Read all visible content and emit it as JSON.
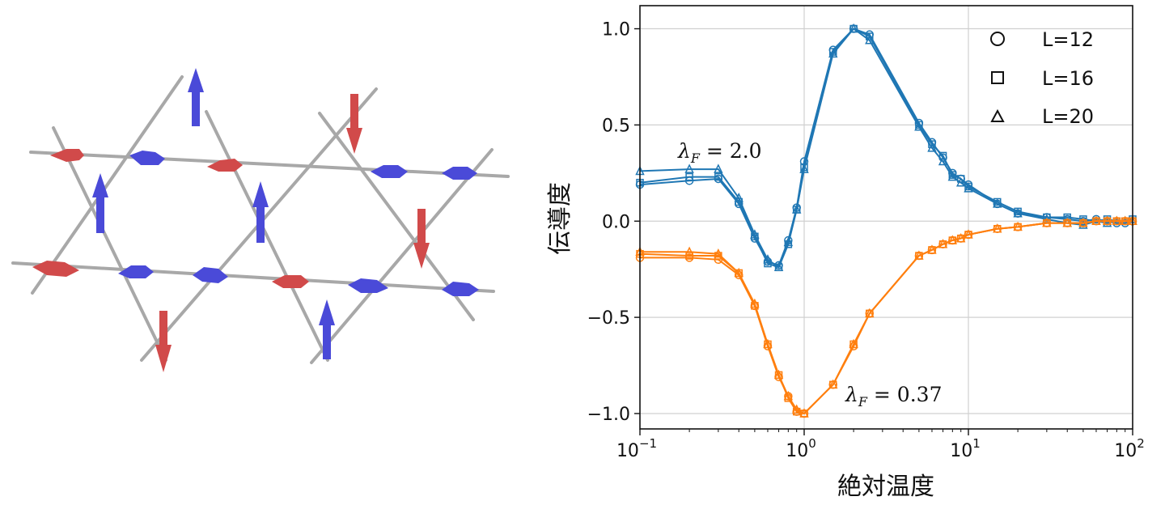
{
  "lattice": {
    "colors": {
      "up_arrow": "#4a4ad8",
      "down_arrow": "#d14a4a",
      "bond": "#a8a8a8"
    }
  },
  "chart_data": {
    "type": "line",
    "xlabel": "絶対温度",
    "ylabel": "伝導度",
    "xscale": "log",
    "xlim": [
      0.1,
      100
    ],
    "ylim": [
      -1.08,
      1.12
    ],
    "grid": true,
    "xticks": [
      0.1,
      1,
      10,
      100
    ],
    "xtick_labels": [
      {
        "base": "10",
        "exp": "−1"
      },
      {
        "base": "10",
        "exp": "0"
      },
      {
        "base": "10",
        "exp": "1"
      },
      {
        "base": "10",
        "exp": "2"
      }
    ],
    "yticks": [
      1.0,
      0.5,
      0.0,
      -0.5,
      -1.0
    ],
    "ytick_labels": [
      "1.0",
      "0.5",
      "0.0",
      "−0.5",
      "−1.0"
    ],
    "legend": {
      "position": "top-right",
      "entries": [
        {
          "marker": "circle",
          "label": "L=12"
        },
        {
          "marker": "square",
          "label": "L=16"
        },
        {
          "marker": "triangle",
          "label": "L=20"
        }
      ]
    },
    "annotations": [
      {
        "text": "λ_F = 2.0",
        "symbol": "λ",
        "sub": "F",
        "rest": " = 2.0",
        "x": 0.2,
        "y": 0.36
      },
      {
        "text": "λ_F = 0.37",
        "symbol": "λ",
        "sub": "F",
        "rest": " = 0.37",
        "x": 2.5,
        "y": -0.94
      }
    ],
    "series": [
      {
        "group": "λ_F = 2.0",
        "color": "#1f77b4",
        "marker": "circle",
        "points": [
          [
            0.1,
            0.19
          ],
          [
            0.2,
            0.21
          ],
          [
            0.3,
            0.22
          ],
          [
            0.4,
            0.09
          ],
          [
            0.5,
            -0.09
          ],
          [
            0.6,
            -0.21
          ],
          [
            0.7,
            -0.23
          ],
          [
            0.8,
            -0.1
          ],
          [
            0.9,
            0.07
          ],
          [
            1,
            0.31
          ],
          [
            1.5,
            0.89
          ],
          [
            2,
            1.0
          ],
          [
            2.5,
            0.97
          ],
          [
            5,
            0.51
          ],
          [
            6,
            0.41
          ],
          [
            7,
            0.33
          ],
          [
            8,
            0.25
          ],
          [
            9,
            0.22
          ],
          [
            10,
            0.19
          ],
          [
            15,
            0.09
          ],
          [
            20,
            0.04
          ],
          [
            30,
            0.02
          ],
          [
            40,
            0.01
          ],
          [
            50,
            0.0
          ],
          [
            60,
            0.01
          ],
          [
            70,
            0.0
          ],
          [
            80,
            -0.01
          ],
          [
            90,
            -0.01
          ],
          [
            100,
            0.0
          ]
        ]
      },
      {
        "group": "λ_F = 2.0",
        "color": "#1f77b4",
        "marker": "square",
        "points": [
          [
            0.1,
            0.2
          ],
          [
            0.2,
            0.23
          ],
          [
            0.3,
            0.23
          ],
          [
            0.4,
            0.1
          ],
          [
            0.5,
            -0.08
          ],
          [
            0.6,
            -0.22
          ],
          [
            0.7,
            -0.24
          ],
          [
            0.8,
            -0.12
          ],
          [
            0.9,
            0.06
          ],
          [
            1,
            0.28
          ],
          [
            1.5,
            0.88
          ],
          [
            2,
            1.0
          ],
          [
            2.5,
            0.96
          ],
          [
            5,
            0.5
          ],
          [
            6,
            0.4
          ],
          [
            7,
            0.34
          ],
          [
            8,
            0.24
          ],
          [
            9,
            0.22
          ],
          [
            10,
            0.18
          ],
          [
            15,
            0.1
          ],
          [
            20,
            0.05
          ],
          [
            30,
            0.02
          ],
          [
            40,
            0.02
          ],
          [
            50,
            0.01
          ],
          [
            60,
            0.0
          ],
          [
            70,
            0.01
          ],
          [
            80,
            0.0
          ],
          [
            90,
            0.0
          ],
          [
            100,
            0.01
          ]
        ]
      },
      {
        "group": "λ_F = 2.0",
        "color": "#1f77b4",
        "marker": "triangle",
        "points": [
          [
            0.1,
            0.26
          ],
          [
            0.2,
            0.27
          ],
          [
            0.3,
            0.27
          ],
          [
            0.4,
            0.12
          ],
          [
            0.5,
            -0.07
          ],
          [
            0.6,
            -0.2
          ],
          [
            0.7,
            -0.24
          ],
          [
            0.8,
            -0.11
          ],
          [
            0.9,
            0.06
          ],
          [
            1,
            0.27
          ],
          [
            1.5,
            0.87
          ],
          [
            2,
            1.0
          ],
          [
            2.5,
            0.94
          ],
          [
            5,
            0.49
          ],
          [
            6,
            0.38
          ],
          [
            7,
            0.31
          ],
          [
            8,
            0.23
          ],
          [
            9,
            0.2
          ],
          [
            10,
            0.17
          ],
          [
            15,
            0.09
          ],
          [
            20,
            0.04
          ],
          [
            30,
            0.01
          ],
          [
            40,
            -0.01
          ],
          [
            50,
            -0.02
          ],
          [
            60,
            0.0
          ],
          [
            70,
            -0.01
          ],
          [
            80,
            0.0
          ],
          [
            90,
            0.0
          ],
          [
            100,
            0.0
          ]
        ]
      },
      {
        "group": "λ_F = 0.37",
        "color": "#ff7f0e",
        "marker": "circle",
        "points": [
          [
            0.1,
            -0.19
          ],
          [
            0.2,
            -0.19
          ],
          [
            0.3,
            -0.2
          ],
          [
            0.4,
            -0.28
          ],
          [
            0.5,
            -0.44
          ],
          [
            0.6,
            -0.65
          ],
          [
            0.7,
            -0.81
          ],
          [
            0.8,
            -0.91
          ],
          [
            0.9,
            -0.99
          ],
          [
            1,
            -1.0
          ],
          [
            1.5,
            -0.85
          ],
          [
            2,
            -0.65
          ],
          [
            2.5,
            -0.48
          ],
          [
            5,
            -0.18
          ],
          [
            6,
            -0.15
          ],
          [
            7,
            -0.12
          ],
          [
            8,
            -0.1
          ],
          [
            9,
            -0.09
          ],
          [
            10,
            -0.07
          ],
          [
            15,
            -0.04
          ],
          [
            20,
            -0.03
          ],
          [
            30,
            -0.01
          ],
          [
            40,
            -0.01
          ],
          [
            50,
            -0.01
          ],
          [
            60,
            0.0
          ],
          [
            70,
            0.0
          ],
          [
            80,
            0.0
          ],
          [
            90,
            0.0
          ],
          [
            100,
            0.0
          ]
        ]
      },
      {
        "group": "λ_F = 0.37",
        "color": "#ff7f0e",
        "marker": "square",
        "points": [
          [
            0.1,
            -0.17
          ],
          [
            0.2,
            -0.18
          ],
          [
            0.3,
            -0.18
          ],
          [
            0.4,
            -0.27
          ],
          [
            0.5,
            -0.44
          ],
          [
            0.6,
            -0.64
          ],
          [
            0.7,
            -0.8
          ],
          [
            0.8,
            -0.92
          ],
          [
            0.9,
            -0.99
          ],
          [
            1,
            -1.0
          ],
          [
            1.5,
            -0.85
          ],
          [
            2,
            -0.64
          ],
          [
            2.5,
            -0.48
          ],
          [
            5,
            -0.18
          ],
          [
            6,
            -0.15
          ],
          [
            7,
            -0.12
          ],
          [
            8,
            -0.1
          ],
          [
            9,
            -0.09
          ],
          [
            10,
            -0.07
          ],
          [
            15,
            -0.04
          ],
          [
            20,
            -0.03
          ],
          [
            30,
            -0.01
          ],
          [
            40,
            -0.01
          ],
          [
            50,
            -0.01
          ],
          [
            60,
            0.0
          ],
          [
            70,
            0.0
          ],
          [
            80,
            0.0
          ],
          [
            90,
            0.0
          ],
          [
            100,
            0.0
          ]
        ]
      },
      {
        "group": "λ_F = 0.37",
        "color": "#ff7f0e",
        "marker": "triangle",
        "points": [
          [
            0.1,
            -0.16
          ],
          [
            0.2,
            -0.16
          ],
          [
            0.3,
            -0.17
          ],
          [
            0.4,
            -0.27
          ],
          [
            0.5,
            -0.43
          ],
          [
            0.6,
            -0.64
          ],
          [
            0.7,
            -0.8
          ],
          [
            0.8,
            -0.91
          ],
          [
            0.9,
            -0.98
          ],
          [
            1,
            -1.0
          ],
          [
            1.5,
            -0.85
          ],
          [
            2,
            -0.64
          ],
          [
            2.5,
            -0.48
          ],
          [
            5,
            -0.18
          ],
          [
            6,
            -0.15
          ],
          [
            7,
            -0.12
          ],
          [
            8,
            -0.1
          ],
          [
            9,
            -0.09
          ],
          [
            10,
            -0.07
          ],
          [
            15,
            -0.04
          ],
          [
            20,
            -0.03
          ],
          [
            30,
            -0.01
          ],
          [
            40,
            -0.01
          ],
          [
            50,
            -0.01
          ],
          [
            60,
            0.0
          ],
          [
            70,
            0.0
          ],
          [
            80,
            0.0
          ],
          [
            90,
            0.0
          ],
          [
            100,
            0.0
          ]
        ]
      }
    ]
  }
}
